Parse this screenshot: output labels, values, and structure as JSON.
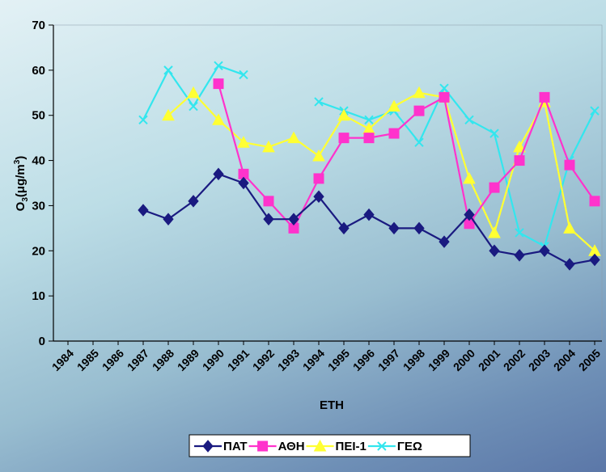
{
  "chart_data": {
    "type": "line",
    "title": "",
    "xlabel": "ΕΤΗ",
    "ylabel_main": "O",
    "ylabel_sub": "3",
    "ylabel_rest": "(μg/m",
    "ylabel_sup": "3",
    "ylabel_end": ")",
    "ylim": [
      0,
      70
    ],
    "yticks": [
      "0",
      "10",
      "20",
      "30",
      "40",
      "50",
      "60",
      "70"
    ],
    "categories": [
      "1984",
      "1985",
      "1986",
      "1987",
      "1988",
      "1989",
      "1990",
      "1991",
      "1992",
      "1993",
      "1994",
      "1995",
      "1996",
      "1997",
      "1998",
      "1999",
      "2000",
      "2001",
      "2002",
      "2003",
      "2004",
      "2005"
    ],
    "grid": false,
    "legend_position": "bottom",
    "series": [
      {
        "name": "ΠΑΤ",
        "color": "#1a1a80",
        "marker": "diamond",
        "values": [
          null,
          null,
          null,
          29,
          27,
          31,
          37,
          35,
          27,
          27,
          32,
          25,
          28,
          25,
          25,
          22,
          28,
          20,
          19,
          20,
          17,
          18
        ]
      },
      {
        "name": "ΑΘΗ",
        "color": "#ff33cc",
        "marker": "square",
        "values": [
          null,
          null,
          null,
          null,
          null,
          null,
          57,
          37,
          31,
          25,
          36,
          45,
          45,
          46,
          51,
          54,
          26,
          34,
          40,
          54,
          39,
          31
        ]
      },
      {
        "name": "ΠΕΙ-1",
        "color": "#ffff33",
        "marker": "triangle",
        "values": [
          null,
          null,
          null,
          null,
          50,
          55,
          49,
          44,
          43,
          45,
          41,
          50,
          47,
          52,
          55,
          54,
          36,
          24,
          43,
          53,
          25,
          20
        ]
      },
      {
        "name": "ΓΕΩ",
        "color": "#33e6ee",
        "marker": "x",
        "values": [
          null,
          null,
          null,
          49,
          60,
          52,
          61,
          59,
          null,
          null,
          53,
          51,
          49,
          51,
          44,
          56,
          49,
          46,
          24,
          21,
          40,
          51
        ]
      }
    ]
  }
}
